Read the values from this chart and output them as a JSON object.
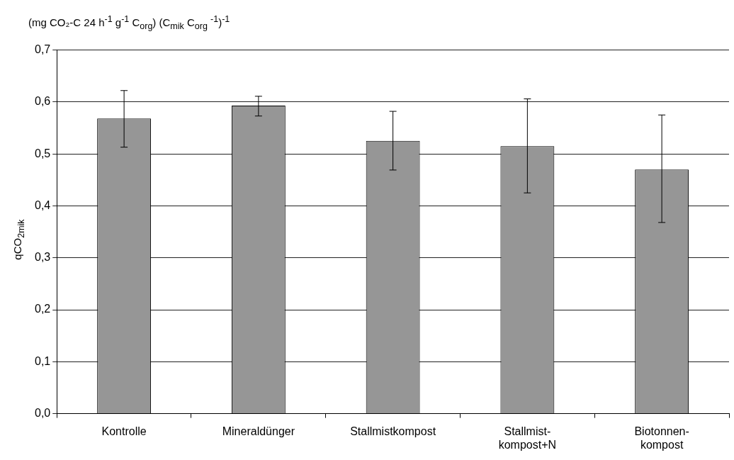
{
  "chart_data": {
    "type": "bar",
    "title": "(mg CO₂-C 24 h$^{-1}$ g$^{-1}$ C$_{org}$) (C$_{mik}$ C$_{org}$ $^{-1}$)$^{-1}$",
    "ylabel": "qCO$_{2mik}$",
    "categories": [
      "Kontrolle",
      "Mineraldünger",
      "Stallmistkompost",
      "Stallmist-kompost+N",
      "Biotonnen-kompost"
    ],
    "values": [
      0.568,
      0.593,
      0.525,
      0.515,
      0.47
    ],
    "errors": [
      [
        0.513,
        0.622
      ],
      [
        0.573,
        0.611
      ],
      [
        0.469,
        0.582
      ],
      [
        0.425,
        0.606
      ],
      [
        0.368,
        0.575
      ]
    ],
    "color": "#969696",
    "ylim": [
      0,
      0.7
    ],
    "yticks": [
      {
        "value": 0,
        "label": "0,0"
      },
      {
        "value": 0.1,
        "label": "0,1"
      },
      {
        "value": 0.2,
        "label": "0,2"
      },
      {
        "value": 0.3,
        "label": "0,3"
      },
      {
        "value": 0.4,
        "label": "0,4"
      },
      {
        "value": 0.5,
        "label": "0,5"
      },
      {
        "value": 0.6,
        "label": "0,6"
      },
      {
        "value": 0.7,
        "label": "0,7"
      }
    ],
    "grid": "y",
    "legend": false
  }
}
